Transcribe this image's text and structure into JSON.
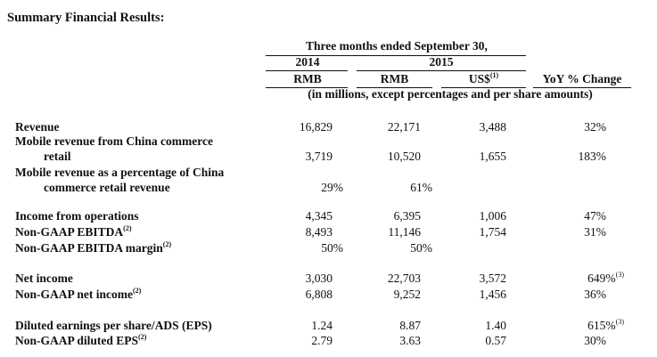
{
  "title": "Summary Financial Results:",
  "header": {
    "period": "Three months ended September 30,",
    "year_2014": "2014",
    "year_2015": "2015",
    "col_rmb_2014": "RMB",
    "col_rmb_2015": "RMB",
    "col_usd": "US$",
    "col_usd_note": "(1)",
    "col_yoy": "YoY % Change",
    "units": "(in millions, except percentages and per share amounts)"
  },
  "rows": [
    {
      "label": "Revenue",
      "rmb_2014": "16,829",
      "rmb_2015": "22,171",
      "usd_2015": "3,488",
      "yoy": "32%"
    },
    {
      "label": "Mobile revenue from China commerce",
      "label2": "retail",
      "rmb_2014": "3,719",
      "rmb_2015": "10,520",
      "usd_2015": "1,655",
      "yoy": "183%"
    },
    {
      "label": "Mobile revenue as a percentage of China",
      "label2": "commerce retail revenue",
      "pct_2014": "29%",
      "pct_2015": "61%"
    },
    {
      "label": "Income from operations",
      "rmb_2014": "4,345",
      "rmb_2015": "6,395",
      "usd_2015": "1,006",
      "yoy": "47%"
    },
    {
      "label": "Non-GAAP EBITDA",
      "note": "(2)",
      "rmb_2014": "8,493",
      "rmb_2015": "11,146",
      "usd_2015": "1,754",
      "yoy": "31%"
    },
    {
      "label": "Non-GAAP EBITDA margin",
      "note": "(2)",
      "pct_2014": "50%",
      "pct_2015": "50%"
    },
    {
      "label": "Net income",
      "rmb_2014": "3,030",
      "rmb_2015": "22,703",
      "usd_2015": "3,572",
      "yoy": "649%",
      "yoy_note": "(3)"
    },
    {
      "label": "Non-GAAP net income",
      "note": "(2)",
      "rmb_2014": "6,808",
      "rmb_2015": "9,252",
      "usd_2015": "1,456",
      "yoy": "36%"
    },
    {
      "label": "Diluted earnings per share/ADS (EPS)",
      "rmb_2014": "1.24",
      "rmb_2015": "8.87",
      "usd_2015": "1.40",
      "yoy": "615%",
      "yoy_note": "(3)"
    },
    {
      "label": "Non-GAAP diluted EPS",
      "note": "(2)",
      "rmb_2014": "2.79",
      "rmb_2015": "3.63",
      "usd_2015": "0.57",
      "yoy": "30%"
    }
  ]
}
